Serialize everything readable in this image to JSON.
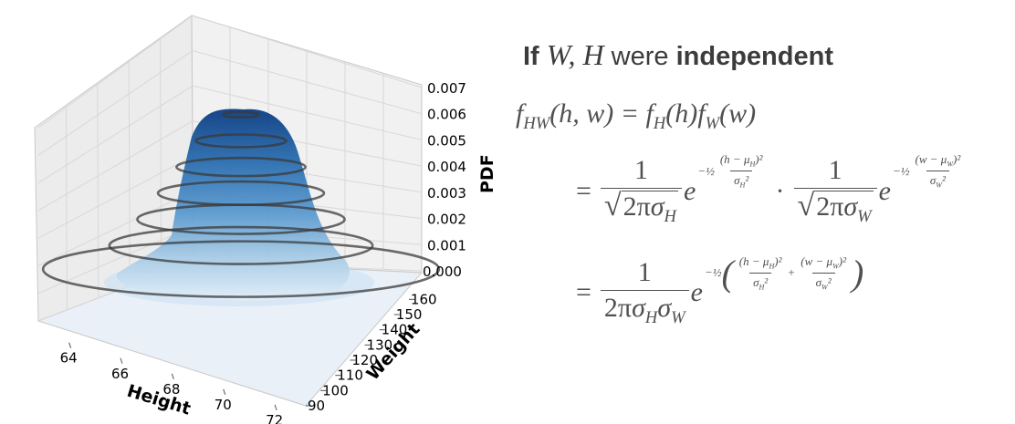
{
  "chart_data": {
    "type": "surface3d",
    "title": "",
    "xlabel": "Height",
    "ylabel": "Weight",
    "zlabel": "PDF",
    "x_ticks": [
      "64",
      "66",
      "68",
      "70",
      "72"
    ],
    "y_ticks": [
      "90",
      "100",
      "110",
      "120",
      "130",
      "140",
      "150",
      "160"
    ],
    "z_ticks": [
      "0.000",
      "0.001",
      "0.002",
      "0.003",
      "0.004",
      "0.005",
      "0.006",
      "0.007"
    ],
    "xlim": [
      63,
      73
    ],
    "ylim": [
      90,
      165
    ],
    "zlim": [
      0,
      0.007
    ],
    "peak": {
      "x": 68,
      "y": 125,
      "z": 0.0062
    },
    "contour_levels": [
      0.0001,
      0.001,
      0.002,
      0.003,
      0.004,
      0.005,
      0.006
    ],
    "colormap": "Blues",
    "grid": true
  },
  "formula": {
    "heading_if": "If",
    "heading_vars": "W, H",
    "heading_were": "were",
    "heading_independent": "independent",
    "joint_lhs": "f_HW(h, w) = f_H(h) f_W(w)",
    "equals": "=",
    "one": "1",
    "two_pi": "2π",
    "dot": "·",
    "e": "e",
    "minus_half": "−½"
  }
}
